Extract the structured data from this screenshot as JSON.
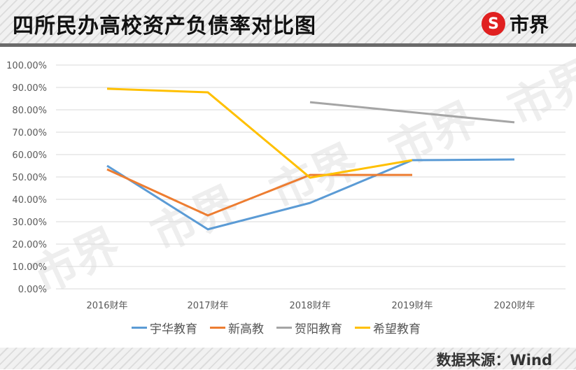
{
  "header": {
    "title": "四所民办高校资产负债率对比图",
    "logo_text": "市界",
    "logo_badge": "S"
  },
  "footer": {
    "source": "数据来源：Wind"
  },
  "watermark": "市界",
  "chart_data": {
    "type": "line",
    "title": "四所民办高校资产负债率对比图",
    "xlabel": "",
    "ylabel": "",
    "categories": [
      "2016财年",
      "2017财年",
      "2018财年",
      "2019财年",
      "2020财年"
    ],
    "y_ticks": [
      "0.00%",
      "10.00%",
      "20.00%",
      "30.00%",
      "40.00%",
      "50.00%",
      "60.00%",
      "70.00%",
      "80.00%",
      "90.00%",
      "100.00%"
    ],
    "ylim": [
      0,
      100
    ],
    "grid": true,
    "legend_position": "bottom",
    "series": [
      {
        "name": "宇华教育",
        "color": "#5b9bd5",
        "values": [
          55.0,
          26.6,
          38.4,
          57.5,
          57.8
        ]
      },
      {
        "name": "新高教",
        "color": "#ed7d31",
        "values": [
          53.4,
          32.8,
          50.9,
          50.9,
          null
        ]
      },
      {
        "name": "贺阳教育",
        "color": "#a5a5a5",
        "values": [
          null,
          null,
          83.4,
          null,
          74.4
        ]
      },
      {
        "name": "希望教育",
        "color": "#ffc000",
        "values": [
          89.4,
          87.8,
          49.7,
          57.5,
          null
        ]
      }
    ]
  }
}
